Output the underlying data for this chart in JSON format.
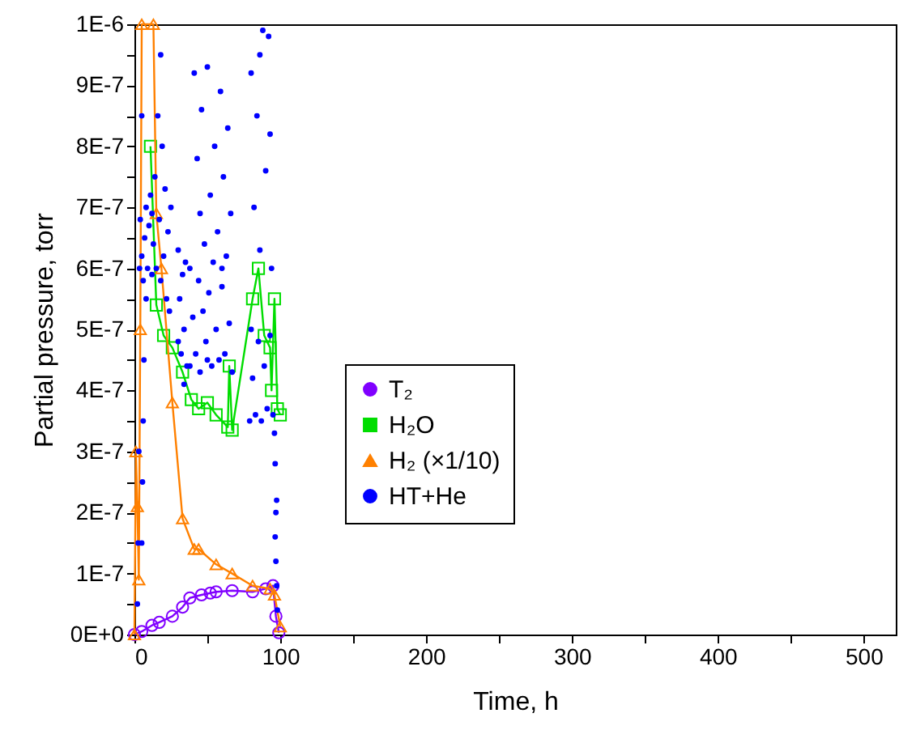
{
  "chart_data": {
    "type": "line",
    "xlabel": "Time, h",
    "ylabel": "Partial pressure, torr",
    "xlim": [
      0,
      522
    ],
    "xticks": [
      0,
      {
        "value": 50,
        "label": null
      },
      100,
      {
        "value": 150,
        "label": null
      },
      200,
      {
        "value": 250,
        "label": null
      },
      300,
      {
        "value": 350,
        "label": null
      },
      400,
      {
        "value": 450,
        "label": null
      },
      500
    ],
    "ylim": [
      0,
      1e-06
    ],
    "yticks": [
      {
        "value": 0,
        "label": "0E+0"
      },
      {
        "value": 5e-08,
        "label": null
      },
      {
        "value": 1e-07,
        "label": "1E-7"
      },
      {
        "value": 1.5e-07,
        "label": null
      },
      {
        "value": 2e-07,
        "label": "2E-7"
      },
      {
        "value": 2.5e-07,
        "label": null
      },
      {
        "value": 3e-07,
        "label": "3E-7"
      },
      {
        "value": 3.5e-07,
        "label": null
      },
      {
        "value": 4e-07,
        "label": "4E-7"
      },
      {
        "value": 4.5e-07,
        "label": null
      },
      {
        "value": 5e-07,
        "label": "5E-7"
      },
      {
        "value": 5.5e-07,
        "label": null
      },
      {
        "value": 6e-07,
        "label": "6E-7"
      },
      {
        "value": 6.5e-07,
        "label": null
      },
      {
        "value": 7e-07,
        "label": "7E-7"
      },
      {
        "value": 7.5e-07,
        "label": null
      },
      {
        "value": 8e-07,
        "label": "8E-7"
      },
      {
        "value": 8.5e-07,
        "label": null
      },
      {
        "value": 9e-07,
        "label": "9E-7"
      },
      {
        "value": 9.5e-07,
        "label": null
      },
      {
        "value": 1e-06,
        "label": "1E-6"
      }
    ],
    "grid": false,
    "legend": "center",
    "series": [
      {
        "name": "T₂",
        "marker": "circle",
        "color": "#8000ff",
        "x": [
          0,
          5,
          12,
          17,
          26,
          33,
          38,
          46,
          52,
          56,
          67,
          81,
          90,
          95,
          97,
          99
        ],
        "values": [
          0,
          5e-09,
          1.5e-08,
          2e-08,
          3e-08,
          4.5e-08,
          6e-08,
          6.5e-08,
          6.8e-08,
          7e-08,
          7.2e-08,
          7e-08,
          7.5e-08,
          8e-08,
          3e-08,
          3e-09
        ]
      },
      {
        "name": "H₂O",
        "marker": "square",
        "color": "#00dd00",
        "x": [
          11,
          15,
          20,
          26,
          33,
          39,
          44,
          50,
          56,
          64,
          65,
          67,
          81,
          85,
          89,
          93,
          94,
          96,
          98,
          100
        ],
        "values": [
          8e-07,
          5.4e-07,
          4.9e-07,
          4.7e-07,
          4.3e-07,
          3.85e-07,
          3.7e-07,
          3.8e-07,
          3.6e-07,
          3.4e-07,
          4.4e-07,
          3.35e-07,
          5.5e-07,
          6e-07,
          4.9e-07,
          4.7e-07,
          4e-07,
          5.5e-07,
          3.7e-07,
          3.6e-07
        ]
      },
      {
        "name": "H₂ (×1/10)",
        "marker": "triangle",
        "color": "#ff8000",
        "x": [
          0,
          1,
          2,
          3,
          4,
          5,
          13,
          15,
          18.5,
          26,
          33,
          41,
          44,
          56,
          67,
          81,
          93,
          96,
          100
        ],
        "values": [
          0,
          3e-07,
          2.1e-07,
          9e-08,
          5e-07,
          1e-06,
          1e-06,
          6.9e-07,
          6e-07,
          3.8e-07,
          1.9e-07,
          1.4e-07,
          1.4e-07,
          1.15e-07,
          1e-07,
          8e-08,
          7.5e-08,
          6.5e-08,
          1.3e-08
        ]
      },
      {
        "name": "HT+He",
        "type": "scatter",
        "marker": "circle",
        "color": "#0000ff",
        "x": [
          2,
          2.5,
          3,
          3.5,
          4,
          5,
          5,
          6,
          7,
          8,
          9,
          10,
          11,
          12,
          13,
          14,
          15,
          16,
          17,
          18,
          19,
          20,
          21,
          22,
          23,
          24,
          25,
          18,
          8,
          12,
          5,
          5.5,
          6,
          6.5,
          30,
          30,
          31,
          32,
          33,
          34,
          35,
          36,
          34,
          38,
          38,
          40,
          41,
          42,
          43,
          44,
          45,
          46,
          47,
          48,
          49,
          50,
          51,
          52,
          53,
          54,
          55,
          56,
          57,
          58,
          59,
          60,
          61,
          62,
          63,
          64,
          65,
          66,
          67,
          60,
          45,
          50,
          79,
          80,
          80,
          81,
          82,
          83,
          84,
          85,
          86,
          87,
          88,
          89,
          90,
          91,
          92,
          93,
          94,
          95,
          93,
          86,
          96,
          96.5,
          97,
          97,
          97.5,
          98,
          96.5,
          97.5
        ],
        "values": [
          5e-08,
          1.5e-07,
          3e-07,
          6e-07,
          6.8e-07,
          8.5e-07,
          6.2e-07,
          5.8e-07,
          6.5e-07,
          7e-07,
          6e-07,
          6.7e-07,
          7.2e-07,
          5.9e-07,
          6.4e-07,
          7.5e-07,
          6e-07,
          8.5e-07,
          6.8e-07,
          5.8e-07,
          8e-07,
          6.2e-07,
          7.3e-07,
          5.5e-07,
          6.6e-07,
          5.3e-07,
          7e-07,
          9.5e-07,
          5.5e-07,
          6.9e-07,
          1.5e-07,
          2.5e-07,
          3.5e-07,
          4.5e-07,
          4.8e-07,
          6.3e-07,
          5.5e-07,
          4.6e-07,
          5.9e-07,
          5e-07,
          6.1e-07,
          4.4e-07,
          4.1e-07,
          4.4e-07,
          6e-07,
          5.2e-07,
          9.2e-07,
          4.6e-07,
          7.8e-07,
          5.8e-07,
          4.3e-07,
          8.6e-07,
          5.3e-07,
          6.4e-07,
          4.8e-07,
          9.3e-07,
          5.6e-07,
          7.2e-07,
          4.4e-07,
          6.1e-07,
          8e-07,
          5e-07,
          6.6e-07,
          4.5e-07,
          8.9e-07,
          5.7e-07,
          7.5e-07,
          4.6e-07,
          6.2e-07,
          8.3e-07,
          5.1e-07,
          6.9e-07,
          4.3e-07,
          6e-07,
          6.9e-07,
          4.5e-07,
          3.5e-07,
          9.2e-07,
          5e-07,
          4.2e-07,
          7e-07,
          3.6e-07,
          8.5e-07,
          4.8e-07,
          6.3e-07,
          3.5e-07,
          9.9e-07,
          4.4e-07,
          7.6e-07,
          3.7e-07,
          9.8e-07,
          4.9e-07,
          6e-07,
          3.6e-07,
          8.2e-07,
          9.5e-07,
          3.3e-07,
          2.8e-07,
          2e-07,
          1.2e-07,
          8e-08,
          4e-08,
          1.6e-07,
          2.2e-07
        ]
      }
    ]
  }
}
